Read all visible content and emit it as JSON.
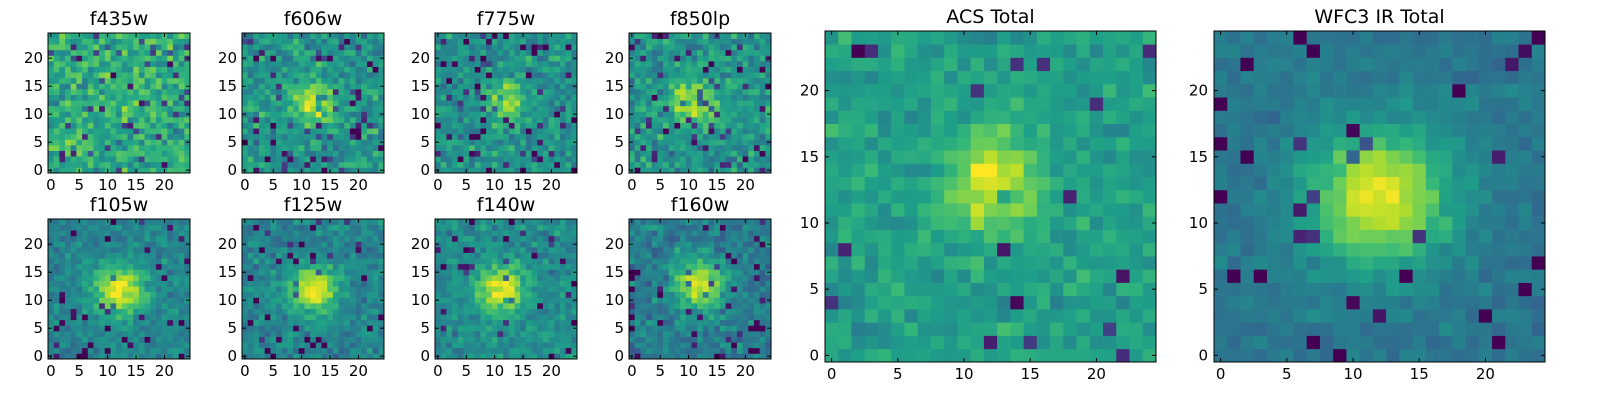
{
  "chart_data": [
    {
      "type": "heatmap",
      "title": "f435w",
      "source": "f435w",
      "x_ticks": [
        "0",
        "5",
        "10",
        "15",
        "20"
      ],
      "y_ticks": [
        "0",
        "5",
        "10",
        "15",
        "20"
      ],
      "xlim": [
        0,
        25
      ],
      "ylim": [
        0,
        25
      ],
      "grid": false,
      "colormap": "viridis",
      "value_range": [
        0,
        1
      ]
    },
    {
      "type": "heatmap",
      "title": "f606w",
      "source": "f606w",
      "x_ticks": [
        "0",
        "5",
        "10",
        "15",
        "20"
      ],
      "y_ticks": [
        "0",
        "5",
        "10",
        "15",
        "20"
      ],
      "xlim": [
        0,
        25
      ],
      "ylim": [
        0,
        25
      ],
      "grid": false,
      "colormap": "viridis",
      "value_range": [
        0,
        1
      ]
    },
    {
      "type": "heatmap",
      "title": "f775w",
      "source": "f775w",
      "x_ticks": [
        "0",
        "5",
        "10",
        "15",
        "20"
      ],
      "y_ticks": [
        "0",
        "5",
        "10",
        "15",
        "20"
      ],
      "xlim": [
        0,
        25
      ],
      "ylim": [
        0,
        25
      ],
      "grid": false,
      "colormap": "viridis",
      "value_range": [
        0,
        1
      ]
    },
    {
      "type": "heatmap",
      "title": "f850lp",
      "source": "f850lp",
      "x_ticks": [
        "0",
        "5",
        "10",
        "15",
        "20"
      ],
      "y_ticks": [
        "0",
        "5",
        "10",
        "15",
        "20"
      ],
      "xlim": [
        0,
        25
      ],
      "ylim": [
        0,
        25
      ],
      "grid": false,
      "colormap": "viridis",
      "value_range": [
        0,
        1
      ]
    },
    {
      "type": "heatmap",
      "title": "f105w",
      "source": "f105w",
      "x_ticks": [
        "0",
        "5",
        "10",
        "15",
        "20"
      ],
      "y_ticks": [
        "0",
        "5",
        "10",
        "15",
        "20"
      ],
      "xlim": [
        0,
        25
      ],
      "ylim": [
        0,
        25
      ],
      "grid": false,
      "colormap": "viridis",
      "value_range": [
        0,
        1
      ]
    },
    {
      "type": "heatmap",
      "title": "f125w",
      "source": "f125w",
      "x_ticks": [
        "0",
        "5",
        "10",
        "15",
        "20"
      ],
      "y_ticks": [
        "0",
        "5",
        "10",
        "15",
        "20"
      ],
      "xlim": [
        0,
        25
      ],
      "ylim": [
        0,
        25
      ],
      "grid": false,
      "colormap": "viridis",
      "value_range": [
        0,
        1
      ]
    },
    {
      "type": "heatmap",
      "title": "f140w",
      "source": "f140w",
      "x_ticks": [
        "0",
        "5",
        "10",
        "15",
        "20"
      ],
      "y_ticks": [
        "0",
        "5",
        "10",
        "15",
        "20"
      ],
      "xlim": [
        0,
        25
      ],
      "ylim": [
        0,
        25
      ],
      "grid": false,
      "colormap": "viridis",
      "value_range": [
        0,
        1
      ]
    },
    {
      "type": "heatmap",
      "title": "f160w",
      "source": "f160w",
      "x_ticks": [
        "0",
        "5",
        "10",
        "15",
        "20"
      ],
      "y_ticks": [
        "0",
        "5",
        "10",
        "15",
        "20"
      ],
      "xlim": [
        0,
        25
      ],
      "ylim": [
        0,
        25
      ],
      "grid": false,
      "colormap": "viridis",
      "value_range": [
        0,
        1
      ]
    },
    {
      "type": "heatmap",
      "title": "ACS Total",
      "source": "ACS Total",
      "x_ticks": [
        "0",
        "5",
        "10",
        "15",
        "20"
      ],
      "y_ticks": [
        "0",
        "5",
        "10",
        "15",
        "20"
      ],
      "xlim": [
        0,
        25
      ],
      "ylim": [
        0,
        25
      ],
      "grid": false,
      "colormap": "viridis",
      "value_range": [
        0,
        1
      ]
    },
    {
      "type": "heatmap",
      "title": "WFC3 IR Total",
      "source": "WFC3 IR Total",
      "x_ticks": [
        "0",
        "5",
        "10",
        "15",
        "20"
      ],
      "y_ticks": [
        "0",
        "5",
        "10",
        "15",
        "20"
      ],
      "xlim": [
        0,
        25
      ],
      "ylim": [
        0,
        25
      ],
      "grid": false,
      "colormap": "viridis",
      "value_range": [
        0,
        1
      ]
    }
  ],
  "colors": {
    "colormap_stops": [
      "#440154",
      "#482878",
      "#3e4989",
      "#31688e",
      "#26828e",
      "#1f9e89",
      "#35b779",
      "#6ece58",
      "#b5de2b",
      "#fde725"
    ]
  }
}
